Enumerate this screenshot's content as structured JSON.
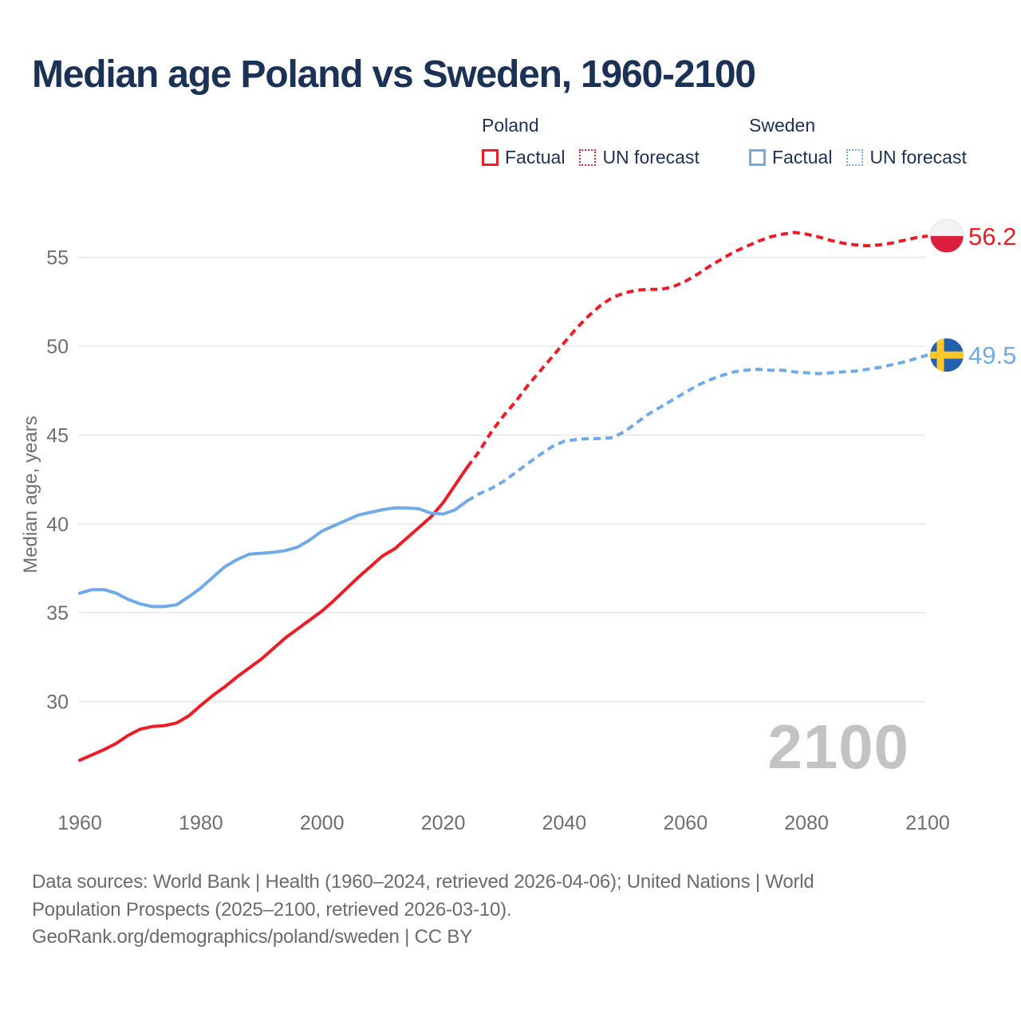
{
  "title": "Median age Poland vs Sweden, 1960-2100",
  "legend": {
    "poland": {
      "title": "Poland",
      "factual_label": "Factual",
      "forecast_label": "UN forecast"
    },
    "sweden": {
      "title": "Sweden",
      "factual_label": "Factual",
      "forecast_label": "UN forecast"
    }
  },
  "colors": {
    "poland_red": "#ee1c25",
    "sweden_blue": "#6fabe8",
    "navy_text": "#1b3156",
    "grid": "#e8e8e8",
    "tick_text": "#6f6f6f",
    "footer_text": "#6b6b6b",
    "watermark": "#c3c3c3",
    "poland_flag_white": "#f3f3f3",
    "poland_flag_red": "#dc1f3c",
    "sweden_flag_blue": "#2161ae",
    "sweden_flag_yellow": "#fec928"
  },
  "end_labels": {
    "poland": "56.2",
    "sweden": "49.5"
  },
  "watermark": "2100",
  "footer_lines": [
    "Data sources: World Bank | Health (1960–2024, retrieved 2026-04-06); United Nations | World",
    "Population Prospects (2025–2100, retrieved 2026-03-10).",
    "GeoRank.org/demographics/poland/sweden | CC BY"
  ],
  "chart_data": {
    "type": "line",
    "title": "Median age Poland vs Sweden, 1960-2100",
    "xlabel": "",
    "ylabel": "Median age, years",
    "xlim": [
      1960,
      2100
    ],
    "ylim": [
      26,
      57.5
    ],
    "xticks": [
      1960,
      1980,
      2000,
      2020,
      2040,
      2060,
      2080,
      2100
    ],
    "yticks": [
      30,
      35,
      40,
      45,
      50,
      55
    ],
    "grid": "horizontal",
    "legend_position": "top-right",
    "series": [
      {
        "name": "Poland — Factual",
        "style": "solid",
        "color_key": "poland_red",
        "points": [
          [
            1960,
            26.7
          ],
          [
            1962,
            27.0
          ],
          [
            1964,
            27.3
          ],
          [
            1966,
            27.65
          ],
          [
            1968,
            28.1
          ],
          [
            1970,
            28.45
          ],
          [
            1972,
            28.6
          ],
          [
            1974,
            28.65
          ],
          [
            1976,
            28.8
          ],
          [
            1978,
            29.2
          ],
          [
            1980,
            29.8
          ],
          [
            1982,
            30.35
          ],
          [
            1984,
            30.85
          ],
          [
            1986,
            31.4
          ],
          [
            1988,
            31.9
          ],
          [
            1990,
            32.4
          ],
          [
            1992,
            33.0
          ],
          [
            1994,
            33.6
          ],
          [
            1996,
            34.1
          ],
          [
            1998,
            34.6
          ],
          [
            2000,
            35.1
          ],
          [
            2002,
            35.7
          ],
          [
            2004,
            36.35
          ],
          [
            2006,
            37.0
          ],
          [
            2008,
            37.6
          ],
          [
            2010,
            38.2
          ],
          [
            2012,
            38.6
          ],
          [
            2014,
            39.2
          ],
          [
            2016,
            39.8
          ],
          [
            2018,
            40.4
          ],
          [
            2020,
            41.2
          ],
          [
            2022,
            42.2
          ],
          [
            2024,
            43.2
          ]
        ]
      },
      {
        "name": "Poland — UN forecast",
        "style": "dashed",
        "color_key": "poland_red",
        "points": [
          [
            2024,
            43.2
          ],
          [
            2026,
            44.1
          ],
          [
            2028,
            45.2
          ],
          [
            2030,
            46.1
          ],
          [
            2032,
            46.9
          ],
          [
            2034,
            47.8
          ],
          [
            2036,
            48.6
          ],
          [
            2038,
            49.4
          ],
          [
            2040,
            50.2
          ],
          [
            2042,
            51.0
          ],
          [
            2044,
            51.7
          ],
          [
            2046,
            52.3
          ],
          [
            2048,
            52.75
          ],
          [
            2050,
            53.0
          ],
          [
            2052,
            53.15
          ],
          [
            2054,
            53.2
          ],
          [
            2056,
            53.2
          ],
          [
            2058,
            53.35
          ],
          [
            2060,
            53.65
          ],
          [
            2062,
            54.05
          ],
          [
            2064,
            54.5
          ],
          [
            2066,
            54.9
          ],
          [
            2068,
            55.3
          ],
          [
            2070,
            55.6
          ],
          [
            2072,
            55.9
          ],
          [
            2074,
            56.15
          ],
          [
            2076,
            56.3
          ],
          [
            2078,
            56.4
          ],
          [
            2080,
            56.3
          ],
          [
            2082,
            56.15
          ],
          [
            2084,
            55.95
          ],
          [
            2086,
            55.8
          ],
          [
            2088,
            55.7
          ],
          [
            2090,
            55.65
          ],
          [
            2092,
            55.7
          ],
          [
            2094,
            55.8
          ],
          [
            2096,
            55.95
          ],
          [
            2098,
            56.1
          ],
          [
            2100,
            56.2
          ]
        ]
      },
      {
        "name": "Sweden — Factual",
        "style": "solid",
        "color_key": "sweden_blue",
        "points": [
          [
            1960,
            36.1
          ],
          [
            1962,
            36.3
          ],
          [
            1964,
            36.3
          ],
          [
            1966,
            36.1
          ],
          [
            1968,
            35.75
          ],
          [
            1970,
            35.5
          ],
          [
            1972,
            35.35
          ],
          [
            1974,
            35.35
          ],
          [
            1976,
            35.45
          ],
          [
            1978,
            35.9
          ],
          [
            1980,
            36.4
          ],
          [
            1982,
            37.0
          ],
          [
            1984,
            37.6
          ],
          [
            1986,
            38.0
          ],
          [
            1988,
            38.3
          ],
          [
            1990,
            38.35
          ],
          [
            1992,
            38.4
          ],
          [
            1994,
            38.5
          ],
          [
            1996,
            38.7
          ],
          [
            1998,
            39.1
          ],
          [
            2000,
            39.6
          ],
          [
            2002,
            39.9
          ],
          [
            2004,
            40.2
          ],
          [
            2006,
            40.5
          ],
          [
            2008,
            40.65
          ],
          [
            2010,
            40.8
          ],
          [
            2012,
            40.9
          ],
          [
            2014,
            40.9
          ],
          [
            2016,
            40.85
          ],
          [
            2018,
            40.6
          ],
          [
            2020,
            40.55
          ],
          [
            2022,
            40.8
          ],
          [
            2024,
            41.3
          ]
        ]
      },
      {
        "name": "Sweden — UN forecast",
        "style": "dashed",
        "color_key": "sweden_blue",
        "points": [
          [
            2024,
            41.3
          ],
          [
            2026,
            41.7
          ],
          [
            2028,
            42.0
          ],
          [
            2030,
            42.4
          ],
          [
            2032,
            42.9
          ],
          [
            2034,
            43.4
          ],
          [
            2036,
            43.9
          ],
          [
            2038,
            44.35
          ],
          [
            2040,
            44.65
          ],
          [
            2042,
            44.75
          ],
          [
            2044,
            44.8
          ],
          [
            2046,
            44.8
          ],
          [
            2048,
            44.85
          ],
          [
            2050,
            45.2
          ],
          [
            2052,
            45.7
          ],
          [
            2054,
            46.2
          ],
          [
            2056,
            46.6
          ],
          [
            2058,
            47.0
          ],
          [
            2060,
            47.4
          ],
          [
            2062,
            47.8
          ],
          [
            2064,
            48.1
          ],
          [
            2066,
            48.35
          ],
          [
            2068,
            48.55
          ],
          [
            2070,
            48.65
          ],
          [
            2072,
            48.7
          ],
          [
            2074,
            48.65
          ],
          [
            2076,
            48.65
          ],
          [
            2078,
            48.55
          ],
          [
            2080,
            48.5
          ],
          [
            2082,
            48.45
          ],
          [
            2084,
            48.5
          ],
          [
            2086,
            48.55
          ],
          [
            2088,
            48.6
          ],
          [
            2090,
            48.7
          ],
          [
            2092,
            48.8
          ],
          [
            2094,
            48.95
          ],
          [
            2096,
            49.1
          ],
          [
            2098,
            49.3
          ],
          [
            2100,
            49.5
          ]
        ]
      }
    ]
  }
}
